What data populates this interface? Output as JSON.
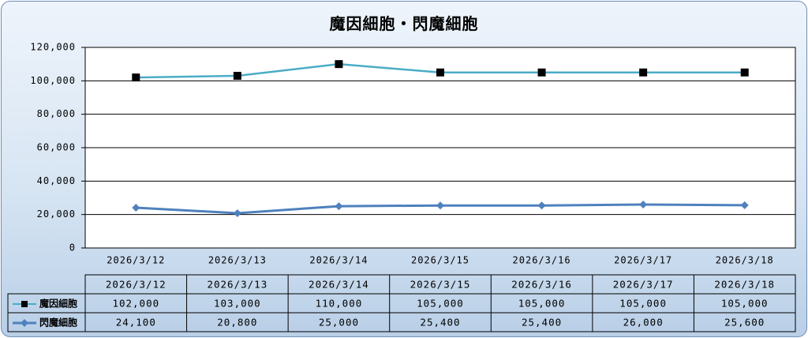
{
  "colors": {
    "series_1": "#4bacc6",
    "series_2": "#4f81bd",
    "marker_1": "#000000"
  },
  "chart_data": {
    "type": "line",
    "title": "魔因細胞・閃魔細胞",
    "categories": [
      "2026/3/12",
      "2026/3/13",
      "2026/3/14",
      "2026/3/15",
      "2026/3/16",
      "2026/3/17",
      "2026/3/18"
    ],
    "series": [
      {
        "name": "魔因細胞",
        "values": [
          102000,
          103000,
          110000,
          105000,
          105000,
          105000,
          105000
        ],
        "display_values": [
          "102,000",
          "103,000",
          "110,000",
          "105,000",
          "105,000",
          "105,000",
          "105,000"
        ],
        "marker": "square"
      },
      {
        "name": "閃魔細胞",
        "values": [
          24100,
          20800,
          25000,
          25400,
          25400,
          26000,
          25600
        ],
        "display_values": [
          "24,100",
          "20,800",
          "25,000",
          "25,400",
          "25,400",
          "26,000",
          "25,600"
        ],
        "marker": "diamond"
      }
    ],
    "ylim": [
      0,
      120000
    ],
    "yticks": [
      0,
      20000,
      40000,
      60000,
      80000,
      100000,
      120000
    ],
    "ytick_labels": [
      "0",
      "20,000",
      "40,000",
      "60,000",
      "80,000",
      "100,000",
      "120,000"
    ],
    "grid": true,
    "legend": "data-table"
  }
}
